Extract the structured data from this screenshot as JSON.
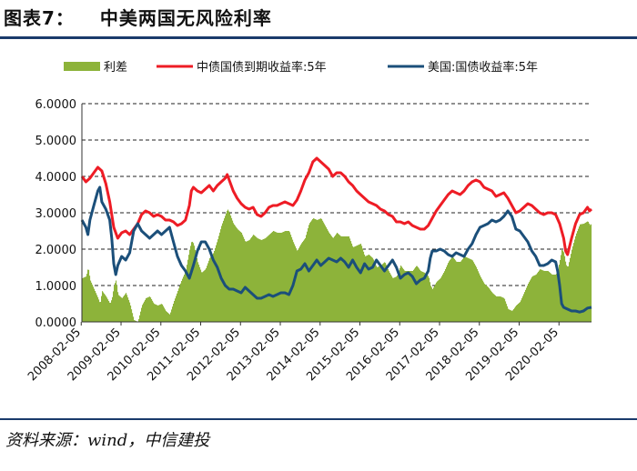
{
  "title": {
    "label": "图表7：",
    "text": "中美两国无风险利率"
  },
  "source": "资料来源：wind，中信建投",
  "colors": {
    "spread": "#8db33a",
    "cn": "#ee1c25",
    "us": "#1b4f7a",
    "rule": "#1a3a6b"
  },
  "chart_data": {
    "type": "line",
    "ylim": [
      0,
      6
    ],
    "yticks": [
      "0.0000",
      "1.0000",
      "2.0000",
      "3.0000",
      "4.0000",
      "5.0000",
      "6.0000"
    ],
    "xticks": [
      "2008-02-05",
      "2009-02-05",
      "2010-02-05",
      "2011-02-05",
      "2012-02-05",
      "2013-02-05",
      "2014-02-05",
      "2015-02-05",
      "2016-02-05",
      "2017-02-05",
      "2018-02-05",
      "2019-02-05",
      "2020-02-05"
    ],
    "x_range_years": [
      2008.1,
      2020.9
    ],
    "grid": "horizontal-dashed",
    "legend_position": "top",
    "series": [
      {
        "name": "利差",
        "kind": "area",
        "note": "中债国债到期收益率:5年 minus 美国:国债收益率:5年"
      },
      {
        "name": "中债国债到期收益率:5年",
        "kind": "line",
        "points": [
          [
            2008.1,
            4.0
          ],
          [
            2008.2,
            3.85
          ],
          [
            2008.3,
            3.95
          ],
          [
            2008.4,
            4.1
          ],
          [
            2008.5,
            4.25
          ],
          [
            2008.6,
            4.15
          ],
          [
            2008.7,
            3.8
          ],
          [
            2008.8,
            3.3
          ],
          [
            2008.9,
            2.6
          ],
          [
            2009.0,
            2.3
          ],
          [
            2009.1,
            2.45
          ],
          [
            2009.2,
            2.5
          ],
          [
            2009.3,
            2.4
          ],
          [
            2009.4,
            2.55
          ],
          [
            2009.5,
            2.7
          ],
          [
            2009.6,
            2.95
          ],
          [
            2009.7,
            3.05
          ],
          [
            2009.8,
            3.0
          ],
          [
            2009.9,
            2.9
          ],
          [
            2010.0,
            2.95
          ],
          [
            2010.1,
            2.9
          ],
          [
            2010.2,
            2.8
          ],
          [
            2010.3,
            2.8
          ],
          [
            2010.4,
            2.75
          ],
          [
            2010.5,
            2.65
          ],
          [
            2010.6,
            2.7
          ],
          [
            2010.7,
            2.8
          ],
          [
            2010.8,
            3.2
          ],
          [
            2010.85,
            3.6
          ],
          [
            2010.9,
            3.7
          ],
          [
            2011.0,
            3.6
          ],
          [
            2011.1,
            3.55
          ],
          [
            2011.2,
            3.65
          ],
          [
            2011.3,
            3.75
          ],
          [
            2011.4,
            3.6
          ],
          [
            2011.5,
            3.75
          ],
          [
            2011.6,
            3.85
          ],
          [
            2011.7,
            3.95
          ],
          [
            2011.75,
            4.05
          ],
          [
            2011.8,
            3.9
          ],
          [
            2011.9,
            3.6
          ],
          [
            2012.0,
            3.4
          ],
          [
            2012.1,
            3.25
          ],
          [
            2012.2,
            3.15
          ],
          [
            2012.3,
            3.1
          ],
          [
            2012.4,
            3.15
          ],
          [
            2012.5,
            2.95
          ],
          [
            2012.6,
            2.9
          ],
          [
            2012.7,
            3.0
          ],
          [
            2012.8,
            3.15
          ],
          [
            2012.9,
            3.2
          ],
          [
            2013.0,
            3.2
          ],
          [
            2013.1,
            3.25
          ],
          [
            2013.2,
            3.3
          ],
          [
            2013.3,
            3.25
          ],
          [
            2013.4,
            3.2
          ],
          [
            2013.5,
            3.35
          ],
          [
            2013.6,
            3.6
          ],
          [
            2013.7,
            3.9
          ],
          [
            2013.8,
            4.1
          ],
          [
            2013.85,
            4.25
          ],
          [
            2013.9,
            4.4
          ],
          [
            2014.0,
            4.5
          ],
          [
            2014.1,
            4.4
          ],
          [
            2014.2,
            4.3
          ],
          [
            2014.3,
            4.2
          ],
          [
            2014.4,
            4.0
          ],
          [
            2014.5,
            4.1
          ],
          [
            2014.6,
            4.1
          ],
          [
            2014.7,
            4.0
          ],
          [
            2014.8,
            3.85
          ],
          [
            2014.9,
            3.75
          ],
          [
            2015.0,
            3.6
          ],
          [
            2015.1,
            3.5
          ],
          [
            2015.2,
            3.4
          ],
          [
            2015.3,
            3.3
          ],
          [
            2015.4,
            3.25
          ],
          [
            2015.5,
            3.2
          ],
          [
            2015.6,
            3.1
          ],
          [
            2015.7,
            3.05
          ],
          [
            2015.8,
            2.95
          ],
          [
            2015.9,
            2.9
          ],
          [
            2016.0,
            2.75
          ],
          [
            2016.1,
            2.75
          ],
          [
            2016.2,
            2.7
          ],
          [
            2016.3,
            2.75
          ],
          [
            2016.4,
            2.65
          ],
          [
            2016.5,
            2.6
          ],
          [
            2016.6,
            2.55
          ],
          [
            2016.7,
            2.55
          ],
          [
            2016.8,
            2.65
          ],
          [
            2016.9,
            2.85
          ],
          [
            2017.0,
            3.05
          ],
          [
            2017.1,
            3.2
          ],
          [
            2017.2,
            3.35
          ],
          [
            2017.3,
            3.5
          ],
          [
            2017.4,
            3.6
          ],
          [
            2017.5,
            3.55
          ],
          [
            2017.6,
            3.5
          ],
          [
            2017.7,
            3.6
          ],
          [
            2017.8,
            3.75
          ],
          [
            2017.9,
            3.85
          ],
          [
            2018.0,
            3.9
          ],
          [
            2018.1,
            3.85
          ],
          [
            2018.2,
            3.7
          ],
          [
            2018.3,
            3.65
          ],
          [
            2018.4,
            3.6
          ],
          [
            2018.5,
            3.45
          ],
          [
            2018.6,
            3.5
          ],
          [
            2018.7,
            3.55
          ],
          [
            2018.8,
            3.4
          ],
          [
            2018.9,
            3.2
          ],
          [
            2019.0,
            3.0
          ],
          [
            2019.1,
            3.05
          ],
          [
            2019.2,
            3.15
          ],
          [
            2019.3,
            3.25
          ],
          [
            2019.4,
            3.2
          ],
          [
            2019.5,
            3.1
          ],
          [
            2019.6,
            3.0
          ],
          [
            2019.7,
            2.95
          ],
          [
            2019.8,
            3.0
          ],
          [
            2019.9,
            3.0
          ],
          [
            2020.0,
            2.95
          ],
          [
            2020.1,
            2.7
          ],
          [
            2020.2,
            2.3
          ],
          [
            2020.25,
            1.95
          ],
          [
            2020.3,
            1.85
          ],
          [
            2020.4,
            2.3
          ],
          [
            2020.5,
            2.7
          ],
          [
            2020.6,
            2.95
          ],
          [
            2020.7,
            3.0
          ],
          [
            2020.8,
            3.15
          ],
          [
            2020.85,
            3.05
          ],
          [
            2020.9,
            3.1
          ]
        ]
      },
      {
        "name": "美国:国债收益率:5年",
        "kind": "line",
        "points": [
          [
            2008.1,
            2.8
          ],
          [
            2008.2,
            2.6
          ],
          [
            2008.25,
            2.4
          ],
          [
            2008.3,
            2.8
          ],
          [
            2008.4,
            3.2
          ],
          [
            2008.5,
            3.6
          ],
          [
            2008.55,
            3.7
          ],
          [
            2008.6,
            3.3
          ],
          [
            2008.7,
            3.1
          ],
          [
            2008.8,
            2.8
          ],
          [
            2008.85,
            2.3
          ],
          [
            2008.9,
            1.6
          ],
          [
            2008.95,
            1.3
          ],
          [
            2009.0,
            1.55
          ],
          [
            2009.1,
            1.8
          ],
          [
            2009.2,
            1.7
          ],
          [
            2009.3,
            1.9
          ],
          [
            2009.4,
            2.5
          ],
          [
            2009.5,
            2.7
          ],
          [
            2009.6,
            2.5
          ],
          [
            2009.7,
            2.4
          ],
          [
            2009.8,
            2.3
          ],
          [
            2009.9,
            2.4
          ],
          [
            2010.0,
            2.5
          ],
          [
            2010.1,
            2.4
          ],
          [
            2010.2,
            2.5
          ],
          [
            2010.3,
            2.6
          ],
          [
            2010.4,
            2.2
          ],
          [
            2010.5,
            1.8
          ],
          [
            2010.6,
            1.55
          ],
          [
            2010.7,
            1.4
          ],
          [
            2010.8,
            1.2
          ],
          [
            2010.9,
            1.55
          ],
          [
            2011.0,
            1.95
          ],
          [
            2011.1,
            2.2
          ],
          [
            2011.2,
            2.2
          ],
          [
            2011.3,
            2.0
          ],
          [
            2011.4,
            1.7
          ],
          [
            2011.5,
            1.5
          ],
          [
            2011.6,
            1.2
          ],
          [
            2011.7,
            1.0
          ],
          [
            2011.8,
            0.9
          ],
          [
            2011.9,
            0.9
          ],
          [
            2012.0,
            0.85
          ],
          [
            2012.1,
            0.8
          ],
          [
            2012.2,
            0.95
          ],
          [
            2012.3,
            0.85
          ],
          [
            2012.4,
            0.75
          ],
          [
            2012.5,
            0.65
          ],
          [
            2012.6,
            0.65
          ],
          [
            2012.7,
            0.7
          ],
          [
            2012.8,
            0.75
          ],
          [
            2012.9,
            0.7
          ],
          [
            2013.0,
            0.75
          ],
          [
            2013.1,
            0.8
          ],
          [
            2013.2,
            0.8
          ],
          [
            2013.3,
            0.75
          ],
          [
            2013.4,
            1.0
          ],
          [
            2013.5,
            1.4
          ],
          [
            2013.6,
            1.45
          ],
          [
            2013.7,
            1.6
          ],
          [
            2013.8,
            1.4
          ],
          [
            2013.9,
            1.55
          ],
          [
            2014.0,
            1.7
          ],
          [
            2014.1,
            1.55
          ],
          [
            2014.2,
            1.65
          ],
          [
            2014.3,
            1.75
          ],
          [
            2014.4,
            1.7
          ],
          [
            2014.5,
            1.65
          ],
          [
            2014.6,
            1.75
          ],
          [
            2014.7,
            1.65
          ],
          [
            2014.8,
            1.5
          ],
          [
            2014.9,
            1.7
          ],
          [
            2015.0,
            1.5
          ],
          [
            2015.1,
            1.35
          ],
          [
            2015.2,
            1.6
          ],
          [
            2015.3,
            1.45
          ],
          [
            2015.4,
            1.5
          ],
          [
            2015.5,
            1.7
          ],
          [
            2015.6,
            1.55
          ],
          [
            2015.7,
            1.4
          ],
          [
            2015.8,
            1.55
          ],
          [
            2015.9,
            1.7
          ],
          [
            2016.0,
            1.5
          ],
          [
            2016.1,
            1.2
          ],
          [
            2016.2,
            1.3
          ],
          [
            2016.3,
            1.35
          ],
          [
            2016.4,
            1.25
          ],
          [
            2016.5,
            1.05
          ],
          [
            2016.6,
            1.15
          ],
          [
            2016.7,
            1.2
          ],
          [
            2016.8,
            1.4
          ],
          [
            2016.85,
            1.75
          ],
          [
            2016.9,
            1.95
          ],
          [
            2017.0,
            1.95
          ],
          [
            2017.1,
            2.0
          ],
          [
            2017.2,
            1.95
          ],
          [
            2017.3,
            1.85
          ],
          [
            2017.4,
            1.8
          ],
          [
            2017.5,
            1.9
          ],
          [
            2017.6,
            1.85
          ],
          [
            2017.7,
            1.8
          ],
          [
            2017.8,
            2.0
          ],
          [
            2017.9,
            2.15
          ],
          [
            2018.0,
            2.4
          ],
          [
            2018.1,
            2.6
          ],
          [
            2018.2,
            2.65
          ],
          [
            2018.3,
            2.7
          ],
          [
            2018.4,
            2.8
          ],
          [
            2018.5,
            2.75
          ],
          [
            2018.6,
            2.8
          ],
          [
            2018.7,
            2.9
          ],
          [
            2018.8,
            3.05
          ],
          [
            2018.9,
            2.9
          ],
          [
            2019.0,
            2.55
          ],
          [
            2019.1,
            2.5
          ],
          [
            2019.2,
            2.35
          ],
          [
            2019.3,
            2.2
          ],
          [
            2019.4,
            1.95
          ],
          [
            2019.5,
            1.8
          ],
          [
            2019.6,
            1.55
          ],
          [
            2019.7,
            1.55
          ],
          [
            2019.8,
            1.6
          ],
          [
            2019.9,
            1.7
          ],
          [
            2020.0,
            1.65
          ],
          [
            2020.05,
            1.4
          ],
          [
            2020.1,
            1.0
          ],
          [
            2020.15,
            0.5
          ],
          [
            2020.2,
            0.4
          ],
          [
            2020.3,
            0.35
          ],
          [
            2020.4,
            0.3
          ],
          [
            2020.5,
            0.3
          ],
          [
            2020.6,
            0.27
          ],
          [
            2020.7,
            0.3
          ],
          [
            2020.8,
            0.38
          ],
          [
            2020.9,
            0.4
          ]
        ]
      }
    ]
  }
}
